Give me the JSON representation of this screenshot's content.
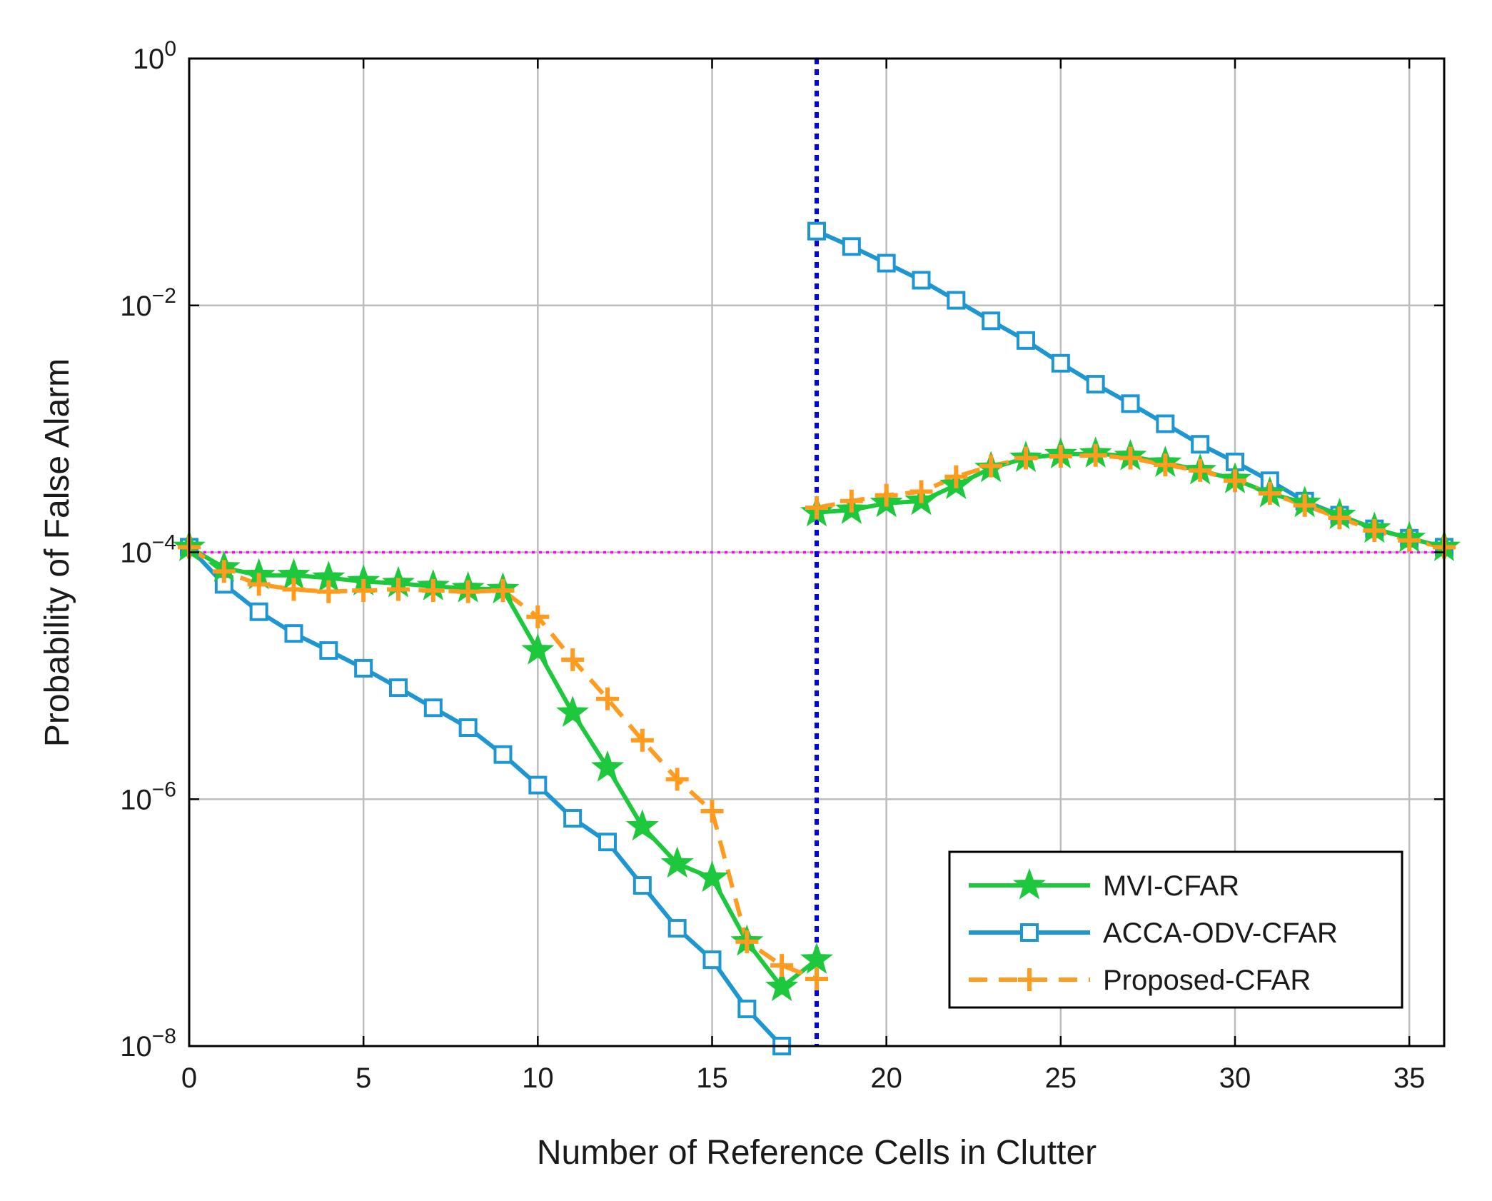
{
  "chart_data": {
    "type": "line",
    "xlabel": "Number of Reference Cells in Clutter",
    "ylabel": "Probability of False Alarm",
    "xlim": [
      0,
      36
    ],
    "ylim": [
      1e-08,
      1
    ],
    "yscale": "log",
    "grid": true,
    "xticks": [
      0,
      5,
      10,
      15,
      20,
      25,
      30,
      35
    ],
    "xtick_labels": [
      "0",
      "5",
      "10",
      "15",
      "20",
      "25",
      "30",
      "35"
    ],
    "yticks": [
      1e-08,
      1e-06,
      0.0001,
      0.01,
      1
    ],
    "ytick_labels": [
      {
        "base": "10",
        "exp": "−8"
      },
      {
        "base": "10",
        "exp": "−6"
      },
      {
        "base": "10",
        "exp": "−4"
      },
      {
        "base": "10",
        "exp": "−2"
      },
      {
        "base": "10",
        "exp": "0"
      }
    ],
    "reference_lines": [
      {
        "orientation": "horizontal",
        "value": 0.0001,
        "color": "#ff00ff",
        "style": "dotted"
      },
      {
        "orientation": "vertical",
        "value": 18,
        "color": "#0000ee",
        "style": "dotted"
      }
    ],
    "legend_position": "bottom-right",
    "series": [
      {
        "name": "MVI-CFAR",
        "color": "#1ec83c",
        "marker": "star",
        "linestyle": "solid",
        "segments": [
          {
            "x": [
              0,
              1,
              2,
              3,
              4,
              5,
              6,
              7,
              8,
              9,
              10,
              11,
              12,
              13,
              14,
              15,
              16,
              17,
              18
            ],
            "y": [
              0.00011,
              7.5e-05,
              6.5e-05,
              6.5e-05,
              6.2e-05,
              5.8e-05,
              5.6e-05,
              5.3e-05,
              5.1e-05,
              5e-05,
              1.6e-05,
              5e-06,
              1.8e-06,
              6e-07,
              3e-07,
              2.3e-07,
              7e-08,
              3e-08,
              5e-08
            ]
          },
          {
            "x": [
              18,
              19,
              20,
              21,
              22,
              23,
              24,
              25,
              26,
              27,
              28,
              29,
              30,
              31,
              32,
              33,
              34,
              35,
              36
            ],
            "y": [
              0.00021,
              0.00022,
              0.00025,
              0.00026,
              0.00035,
              0.00048,
              0.00058,
              0.00062,
              0.00063,
              0.0006,
              0.00053,
              0.00046,
              0.00039,
              0.0003,
              0.00025,
              0.0002,
              0.000155,
              0.00013,
              0.00011
            ]
          }
        ]
      },
      {
        "name": "ACCA-ODV-CFAR",
        "color": "#1e96d2",
        "marker": "square",
        "linestyle": "solid",
        "segments": [
          {
            "x": [
              0,
              1,
              2,
              3,
              4,
              5,
              6,
              7,
              8,
              9,
              10,
              11,
              12,
              13,
              14,
              15,
              16,
              17
            ],
            "y": [
              0.00011,
              5.5e-05,
              3.3e-05,
              2.2e-05,
              1.6e-05,
              1.15e-05,
              8e-06,
              5.5e-06,
              3.8e-06,
              2.3e-06,
              1.3e-06,
              7e-07,
              4.5e-07,
              2e-07,
              9e-08,
              5e-08,
              2e-08,
              1e-08
            ]
          },
          {
            "x": [
              18,
              19,
              20,
              21,
              22,
              23,
              24,
              25,
              26,
              27,
              28,
              29,
              30,
              31,
              32,
              33,
              34,
              35,
              36
            ],
            "y": [
              0.04,
              0.03,
              0.022,
              0.016,
              0.011,
              0.0075,
              0.0052,
              0.0034,
              0.0023,
              0.0016,
              0.0011,
              0.00075,
              0.00054,
              0.00038,
              0.00026,
              0.0002,
              0.000155,
              0.00013,
              0.00011
            ]
          }
        ]
      },
      {
        "name": "Proposed-CFAR",
        "color": "#ff9b1e",
        "marker": "plus",
        "linestyle": "dashed",
        "segments": [
          {
            "x": [
              0,
              1,
              2,
              3,
              4,
              5,
              6,
              7,
              8,
              9,
              10,
              11,
              12,
              13,
              14,
              15,
              16,
              17,
              18
            ],
            "y": [
              0.00011,
              7e-05,
              5.5e-05,
              5e-05,
              4.8e-05,
              4.9e-05,
              5e-05,
              4.9e-05,
              4.8e-05,
              4.9e-05,
              3e-05,
              1.35e-05,
              6.5e-06,
              3e-06,
              1.45e-06,
              8e-07,
              7e-08,
              4.5e-08,
              3.5e-08
            ]
          },
          {
            "x": [
              18,
              19,
              20,
              21,
              22,
              23,
              24,
              25,
              26,
              27,
              28,
              29,
              30,
              31,
              32,
              33,
              34,
              35,
              36
            ],
            "y": [
              0.00023,
              0.00026,
              0.00029,
              0.00031,
              0.00041,
              0.0005,
              0.00058,
              0.0006,
              0.00061,
              0.00058,
              0.00051,
              0.00046,
              0.00038,
              0.0003,
              0.00024,
              0.00019,
              0.00015,
              0.000125,
              0.00011
            ]
          }
        ]
      }
    ]
  }
}
